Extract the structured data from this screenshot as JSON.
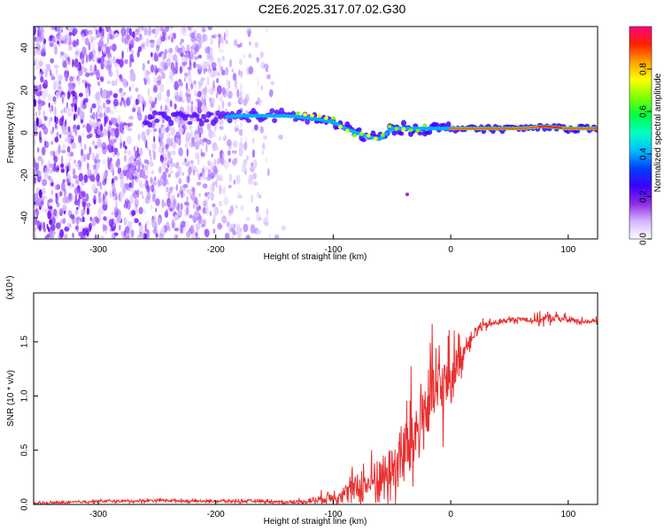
{
  "figure": {
    "title": "C2E6.2025.317.07.02.G30"
  },
  "chart_data": [
    {
      "type": "heatmap",
      "xlabel": "Height of straight line (km)",
      "ylabel": "Frequency (Hz)",
      "xlim": [
        -355,
        125
      ],
      "ylim": [
        -50,
        50
      ],
      "xticks": [
        -300,
        -200,
        -100,
        0,
        100
      ],
      "yticks": [
        -40,
        -20,
        0,
        20,
        40
      ],
      "colorbar": {
        "label": "Normalized spectral amplitude",
        "range": [
          0,
          1
        ],
        "ticks": [
          "0.0",
          "0.2",
          "0.4",
          "0.6",
          "0.8"
        ],
        "colors": [
          "#ffffff",
          "#d4b5ff",
          "#8a2be2",
          "#3a00ff",
          "#0040ff",
          "#00c0ff",
          "#00ffc0",
          "#00ff40",
          "#80ff00",
          "#ffff00",
          "#ffa000",
          "#ff2000",
          "#ff0080"
        ]
      },
      "ridge": {
        "x": [
          -260,
          -230,
          -200,
          -180,
          -160,
          -140,
          -120,
          -100,
          -90,
          -80,
          -70,
          -60,
          -50,
          -40,
          -30,
          -20,
          -10,
          0,
          20,
          40,
          60,
          80,
          100,
          125
        ],
        "y": [
          7,
          7,
          7,
          8,
          8,
          8,
          7,
          5,
          2,
          0,
          -2,
          -3,
          2,
          2,
          2,
          2,
          2,
          2,
          2,
          2,
          2,
          3,
          2,
          2
        ]
      },
      "noise_extent_x": [
        -355,
        -140
      ],
      "outliers": [
        {
          "x": -37,
          "y": -29
        }
      ]
    },
    {
      "type": "line",
      "xlabel": "Height of straight line (km)",
      "ylabel": "SNR (10 * v/v)",
      "y_multiplier": "(x10⁴)",
      "xlim": [
        -355,
        125
      ],
      "ylim": [
        0,
        1.95
      ],
      "xticks": [
        -300,
        -200,
        -100,
        0,
        100
      ],
      "yticks": [
        "0.0",
        "0.5",
        "1.0",
        "1.5"
      ],
      "series": [
        {
          "color": "#e83030",
          "x": [
            -355,
            -320,
            -300,
            -270,
            -250,
            -220,
            -200,
            -180,
            -160,
            -140,
            -120,
            -110,
            -100,
            -90,
            -80,
            -70,
            -60,
            -50,
            -40,
            -35,
            -30,
            -25,
            -20,
            -15,
            -10,
            -5,
            0,
            5,
            10,
            15,
            20,
            25,
            30,
            40,
            50,
            60,
            70,
            80,
            90,
            100,
            110,
            125
          ],
          "y": [
            0.01,
            0.02,
            0.03,
            0.03,
            0.04,
            0.03,
            0.03,
            0.03,
            0.03,
            0.02,
            0.03,
            0.05,
            0.08,
            0.1,
            0.15,
            0.18,
            0.25,
            0.32,
            0.45,
            0.55,
            0.65,
            0.8,
            0.9,
            1.0,
            1.05,
            1.1,
            1.2,
            1.3,
            1.4,
            1.5,
            1.58,
            1.63,
            1.65,
            1.68,
            1.7,
            1.71,
            1.7,
            1.71,
            1.72,
            1.7,
            1.69,
            1.69
          ],
          "noise": [
            0.01,
            0.01,
            0.01,
            0.01,
            0.01,
            0.01,
            0.01,
            0.01,
            0.01,
            0.01,
            0.02,
            0.04,
            0.06,
            0.08,
            0.12,
            0.14,
            0.18,
            0.22,
            0.3,
            0.32,
            0.35,
            0.35,
            0.38,
            0.3,
            0.3,
            0.25,
            0.2,
            0.15,
            0.1,
            0.06,
            0.05,
            0.04,
            0.03,
            0.02,
            0.02,
            0.02,
            0.03,
            0.04,
            0.03,
            0.03,
            0.02,
            0.02
          ]
        }
      ]
    }
  ]
}
